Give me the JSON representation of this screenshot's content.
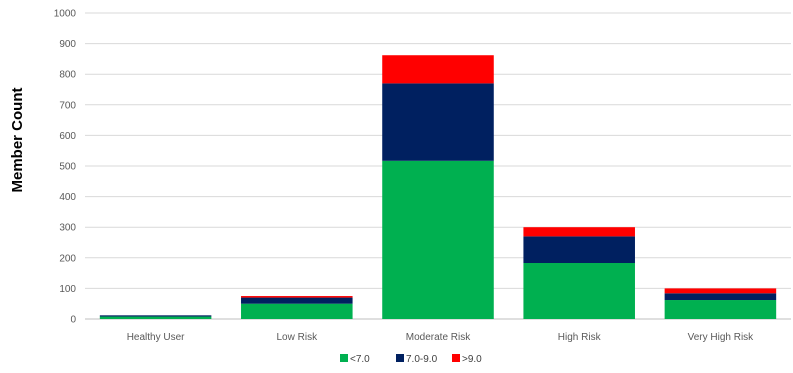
{
  "chart_data": {
    "type": "bar",
    "stacked": true,
    "title": "",
    "xlabel": "",
    "ylabel": "Member Count",
    "ylim": [
      0,
      1000
    ],
    "yticks": [
      0,
      100,
      200,
      300,
      400,
      500,
      600,
      700,
      800,
      900,
      1000
    ],
    "categories": [
      "Healthy User",
      "Low Risk",
      "Moderate Risk",
      "High Risk",
      "Very High Risk"
    ],
    "series": [
      {
        "name": "<7.0",
        "color": "#00b050",
        "values": [
          8,
          50,
          517,
          183,
          62
        ]
      },
      {
        "name": "7.0-9.0",
        "color": "#002060",
        "values": [
          4,
          20,
          253,
          87,
          22
        ]
      },
      {
        "name": ">9.0",
        "color": "#ff0000",
        "values": [
          0,
          5,
          92,
          30,
          16
        ]
      }
    ],
    "grid": true,
    "legend_position": "bottom"
  }
}
